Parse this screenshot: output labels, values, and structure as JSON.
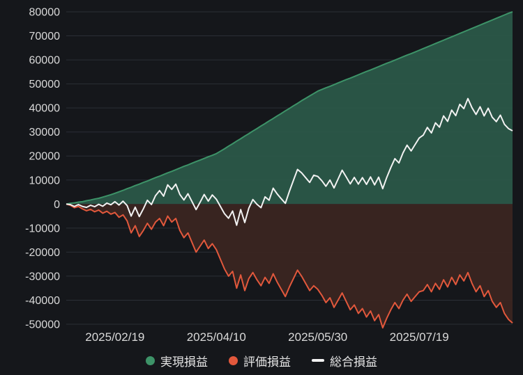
{
  "chart": {
    "background_color": "#15171b",
    "grid_color": "#2b2f36",
    "axis_label_color": "#d9d9d9"
  },
  "legend": {
    "realized_label": "実現損益",
    "unrealized_label": "評価損益",
    "total_label": "総合損益"
  },
  "chart_data": {
    "type": "line",
    "title": "",
    "xlabel": "",
    "ylabel": "",
    "ylim": [
      -50000,
      80000
    ],
    "y_tick_step": 10000,
    "grid": true,
    "legend_position": "bottom",
    "x_tick_labels": [
      "2025/02/19",
      "2025/04/10",
      "2025/05/30",
      "2025/07/19"
    ],
    "x_tick_indices": [
      12,
      37,
      62,
      87
    ],
    "total_is_sum_of_first_two_series": true,
    "series": [
      {
        "name": "実現損益",
        "type": "area",
        "color": "#3d9368",
        "fill": "#2b5a49",
        "values": [
          0,
          300,
          500,
          800,
          1000,
          1400,
          1700,
          2100,
          2400,
          2900,
          3400,
          3900,
          4500,
          5100,
          5700,
          6400,
          7000,
          7700,
          8300,
          9000,
          9600,
          10300,
          11000,
          11600,
          12300,
          13000,
          13600,
          14300,
          15000,
          15700,
          16300,
          17000,
          17700,
          18300,
          19000,
          19700,
          20300,
          21000,
          22000,
          23000,
          24100,
          25100,
          26200,
          27200,
          28300,
          29300,
          30400,
          31400,
          32500,
          33500,
          34600,
          35600,
          36700,
          37700,
          38800,
          39800,
          40900,
          41900,
          43000,
          44000,
          45000,
          46000,
          47000,
          47700,
          48400,
          49000,
          49700,
          50400,
          51100,
          51800,
          52400,
          53100,
          53800,
          54500,
          55200,
          55800,
          56500,
          57200,
          57900,
          58600,
          59200,
          59900,
          60600,
          61300,
          62000,
          62600,
          63300,
          64000,
          64700,
          65400,
          66100,
          66800,
          67500,
          68200,
          68900,
          69600,
          70300,
          71000,
          71700,
          72400,
          73100,
          73800,
          74500,
          75200,
          75900,
          76600,
          77300,
          78000,
          78700,
          79400,
          80000
        ]
      },
      {
        "name": "評価損益",
        "type": "area",
        "color": "#e2583c",
        "fill": "#3a2521",
        "values": [
          0,
          -500,
          -1500,
          -1000,
          -2000,
          -2800,
          -2200,
          -3200,
          -2500,
          -3800,
          -3000,
          -4200,
          -3500,
          -5500,
          -4500,
          -7000,
          -12000,
          -9000,
          -13500,
          -11000,
          -8000,
          -10500,
          -7500,
          -6000,
          -9000,
          -5000,
          -7500,
          -6000,
          -11000,
          -14000,
          -12000,
          -16000,
          -20000,
          -17500,
          -15000,
          -18500,
          -16500,
          -19000,
          -23000,
          -27000,
          -30000,
          -28000,
          -35000,
          -29500,
          -36000,
          -31000,
          -28500,
          -31500,
          -34000,
          -30500,
          -33000,
          -29000,
          -32500,
          -35500,
          -38500,
          -34500,
          -31000,
          -27500,
          -30000,
          -33000,
          -36000,
          -34000,
          -35500,
          -38000,
          -41000,
          -39000,
          -43000,
          -40000,
          -37000,
          -40500,
          -44000,
          -42000,
          -45500,
          -43500,
          -47000,
          -44500,
          -48500,
          -46000,
          -51500,
          -47500,
          -44000,
          -41000,
          -43500,
          -40000,
          -37500,
          -40500,
          -38500,
          -36500,
          -36000,
          -33500,
          -36500,
          -33000,
          -35500,
          -31500,
          -34500,
          -30500,
          -33500,
          -29500,
          -32000,
          -28500,
          -33000,
          -36500,
          -34000,
          -38500,
          -36000,
          -40500,
          -43000,
          -41000,
          -45500,
          -48000,
          -49500
        ]
      },
      {
        "name": "総合損益",
        "type": "line",
        "color": "#f2f2f2",
        "derived": "sum"
      }
    ]
  }
}
